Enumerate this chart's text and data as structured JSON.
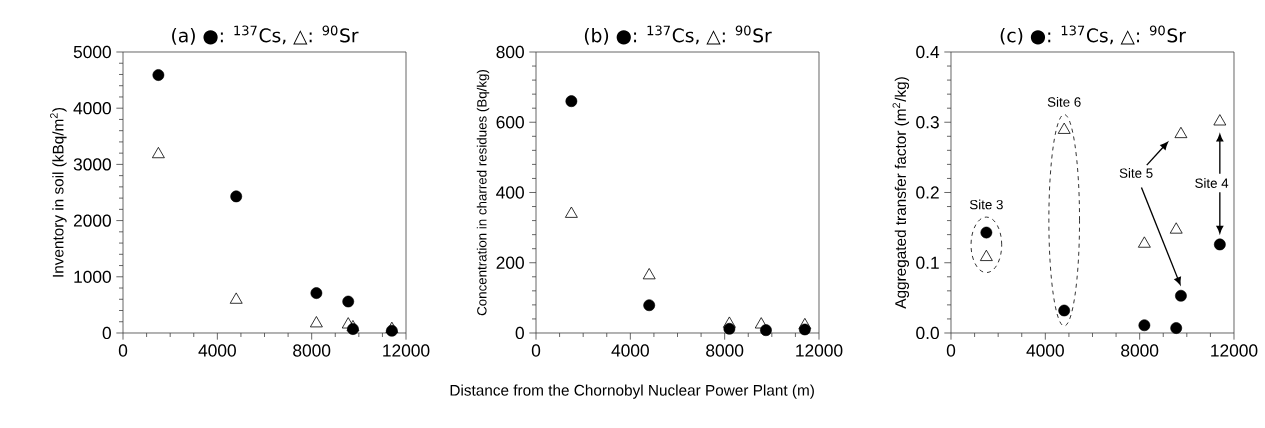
{
  "chart_data": [
    {
      "type": "scatter",
      "title": "(a) ●: $^{137}$Cs, △: $^{90}$Sr",
      "ylabel": "Inventory in soil (kBq/m$^{2}$)",
      "x": [
        1500,
        4800,
        8200,
        9550,
        9750,
        11400
      ],
      "series": [
        {
          "color": "#000000",
          "marker": "circle",
          "values": [
            4590,
            2430,
            710,
            560,
            70,
            40
          ]
        },
        {
          "color": "#000000",
          "marker": "triangle",
          "values": [
            3180,
            590,
            170,
            150,
            100,
            70
          ]
        }
      ],
      "xlim": [
        0,
        12000
      ],
      "xticks": [
        0,
        4000,
        8000,
        12000
      ],
      "ylim": [
        0,
        5000
      ],
      "yticks": [
        0,
        1000,
        2000,
        3000,
        4000,
        5000
      ]
    },
    {
      "type": "scatter",
      "title": "(b) ●: $^{137}$Cs, △: $^{90}$Sr",
      "ylabel": "Concentration in charred residues  (Bq/kg)",
      "xlabel": "Distance from the Chornobyl Nuclear Power Plant  (m)",
      "x": [
        1500,
        4800,
        8200,
        9550,
        9750,
        11400
      ],
      "series": [
        {
          "color": "#000000",
          "marker": "circle",
          "values": [
            660,
            79,
            12,
            null,
            8,
            10
          ]
        },
        {
          "color": "#000000",
          "marker": "triangle",
          "values": [
            339,
            164,
            26,
            24,
            null,
            22
          ]
        }
      ],
      "xlim": [
        0,
        12000
      ],
      "xticks": [
        0,
        4000,
        8000,
        12000
      ],
      "ylim": [
        0,
        800
      ],
      "yticks": [
        0,
        200,
        400,
        600,
        800
      ]
    },
    {
      "type": "scatter",
      "title": "(c) ●: $^{137}$Cs, △: $^{90}$Sr",
      "ylabel": "Aggregated transfer factor (m$^{2}$/kg)",
      "x": [
        1500,
        4800,
        8200,
        9550,
        9750,
        11400
      ],
      "series": [
        {
          "color": "#000000",
          "marker": "circle",
          "values": [
            0.143,
            0.032,
            0.011,
            0.007,
            0.053,
            0.126
          ]
        },
        {
          "color": "#000000",
          "marker": "triangle",
          "values": [
            0.108,
            0.289,
            0.127,
            0.147,
            0.283,
            0.301
          ]
        }
      ],
      "annotations": [
        "Site 3",
        "Site 6",
        "Site 5",
        "Site 4"
      ],
      "xlim": [
        0,
        12000
      ],
      "xticks": [
        0,
        4000,
        8000,
        12000
      ],
      "ylim": [
        0,
        0.4
      ],
      "yticks": [
        {
          "value": 0,
          "label": "0.0"
        },
        0.1,
        0.2,
        0.3,
        0.4
      ]
    }
  ]
}
